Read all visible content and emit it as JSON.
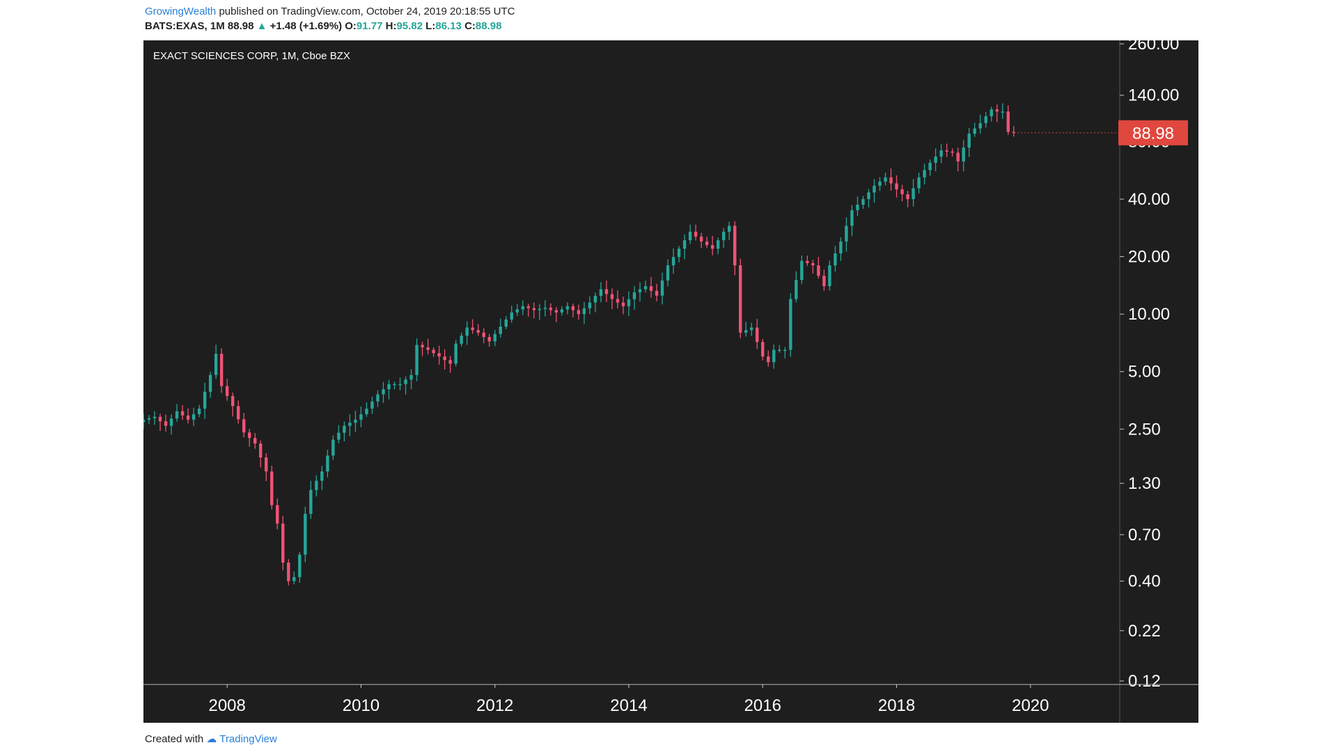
{
  "header": {
    "author": "GrowingWealth",
    "published_text": "published on TradingView.com, October 24, 2019 20:18:55 UTC",
    "symbol": "BATS:EXAS, 1M",
    "last": "88.98",
    "change": "+1.48 (+1.69%)",
    "o_label": "O:",
    "o_value": "91.77",
    "h_label": "H:",
    "h_value": "95.82",
    "l_label": "L:",
    "l_value": "86.13",
    "c_label": "C:",
    "c_value": "88.98"
  },
  "footer": {
    "created_with": "Created with",
    "brand": "TradingView"
  },
  "colors": {
    "background": "#1e1e1e",
    "up": "#26a69a",
    "down": "#ef5375",
    "price_tag": "#e0473e",
    "text": "#ffffff"
  },
  "chart_data": {
    "type": "candlestick",
    "title": "EXACT SCIENCES CORP, 1M, Cboe BZX",
    "scale": "log",
    "ylim": [
      0.12,
      260
    ],
    "y_ticks": [
      "260.00",
      "140.00",
      "80.00",
      "40.00",
      "20.00",
      "10.00",
      "5.00",
      "2.50",
      "1.30",
      "0.70",
      "0.40",
      "0.22",
      "0.12"
    ],
    "x_ticks": [
      "2008",
      "2010",
      "2012",
      "2014",
      "2016",
      "2018",
      "2020"
    ],
    "x_range": [
      "2006-10",
      "2021-05"
    ],
    "last_price_label": "88.98",
    "last_price": 88.98,
    "series": [
      {
        "name": "EXAS",
        "points": [
          [
            "2006-10",
            2.8
          ],
          [
            "2006-12",
            2.9
          ],
          [
            "2007-02",
            2.6
          ],
          [
            "2007-04",
            3.1
          ],
          [
            "2007-06",
            2.8
          ],
          [
            "2007-08",
            3.2
          ],
          [
            "2007-10",
            4.8
          ],
          [
            "2007-11",
            6.2
          ],
          [
            "2007-12",
            4.2
          ],
          [
            "2008-02",
            3.3
          ],
          [
            "2008-04",
            2.4
          ],
          [
            "2008-06",
            2.1
          ],
          [
            "2008-08",
            1.5
          ],
          [
            "2008-09",
            1.0
          ],
          [
            "2008-10",
            0.8
          ],
          [
            "2008-11",
            0.5
          ],
          [
            "2008-12",
            0.4
          ],
          [
            "2009-01",
            0.42
          ],
          [
            "2009-02",
            0.55
          ],
          [
            "2009-03",
            0.9
          ],
          [
            "2009-04",
            1.2
          ],
          [
            "2009-06",
            1.5
          ],
          [
            "2009-08",
            2.2
          ],
          [
            "2009-10",
            2.6
          ],
          [
            "2009-12",
            2.8
          ],
          [
            "2010-02",
            3.2
          ],
          [
            "2010-04",
            3.8
          ],
          [
            "2010-06",
            4.3
          ],
          [
            "2010-08",
            4.3
          ],
          [
            "2010-10",
            4.8
          ],
          [
            "2010-11",
            6.9
          ],
          [
            "2011-01",
            6.5
          ],
          [
            "2011-03",
            6.0
          ],
          [
            "2011-05",
            5.5
          ],
          [
            "2011-06",
            7.0
          ],
          [
            "2011-08",
            8.5
          ],
          [
            "2011-10",
            8.0
          ],
          [
            "2011-12",
            7.2
          ],
          [
            "2012-02",
            8.6
          ],
          [
            "2012-04",
            10.2
          ],
          [
            "2012-06",
            11.0
          ],
          [
            "2012-08",
            10.5
          ],
          [
            "2012-10",
            10.8
          ],
          [
            "2012-12",
            10.2
          ],
          [
            "2013-02",
            11.0
          ],
          [
            "2013-04",
            10.0
          ],
          [
            "2013-06",
            11.5
          ],
          [
            "2013-08",
            13.5
          ],
          [
            "2013-10",
            12.0
          ],
          [
            "2013-12",
            11.0
          ],
          [
            "2014-02",
            13.0
          ],
          [
            "2014-04",
            14.0
          ],
          [
            "2014-06",
            12.5
          ],
          [
            "2014-08",
            18.0
          ],
          [
            "2014-10",
            22.0
          ],
          [
            "2014-12",
            27.0
          ],
          [
            "2015-02",
            24.0
          ],
          [
            "2015-04",
            22.0
          ],
          [
            "2015-06",
            27.0
          ],
          [
            "2015-07",
            29.0
          ],
          [
            "2015-08",
            18.0
          ],
          [
            "2015-09",
            8.0
          ],
          [
            "2015-11",
            8.5
          ],
          [
            "2016-01",
            6.0
          ],
          [
            "2016-02",
            5.6
          ],
          [
            "2016-03",
            6.5
          ],
          [
            "2016-05",
            6.5
          ],
          [
            "2016-06",
            12.0
          ],
          [
            "2016-08",
            19.0
          ],
          [
            "2016-10",
            18.0
          ],
          [
            "2016-12",
            14.0
          ],
          [
            "2017-01",
            18.0
          ],
          [
            "2017-03",
            24.0
          ],
          [
            "2017-05",
            35.0
          ],
          [
            "2017-07",
            40.0
          ],
          [
            "2017-09",
            47.0
          ],
          [
            "2017-11",
            52.0
          ],
          [
            "2018-01",
            45.0
          ],
          [
            "2018-03",
            40.0
          ],
          [
            "2018-05",
            52.0
          ],
          [
            "2018-07",
            62.0
          ],
          [
            "2018-09",
            72.0
          ],
          [
            "2018-11",
            70.0
          ],
          [
            "2018-12",
            63.0
          ],
          [
            "2019-02",
            88.0
          ],
          [
            "2019-04",
            100.0
          ],
          [
            "2019-06",
            118.0
          ],
          [
            "2019-07",
            115.0
          ],
          [
            "2019-08",
            115.0
          ],
          [
            "2019-09",
            90.0
          ],
          [
            "2019-10",
            88.98
          ]
        ]
      }
    ]
  }
}
